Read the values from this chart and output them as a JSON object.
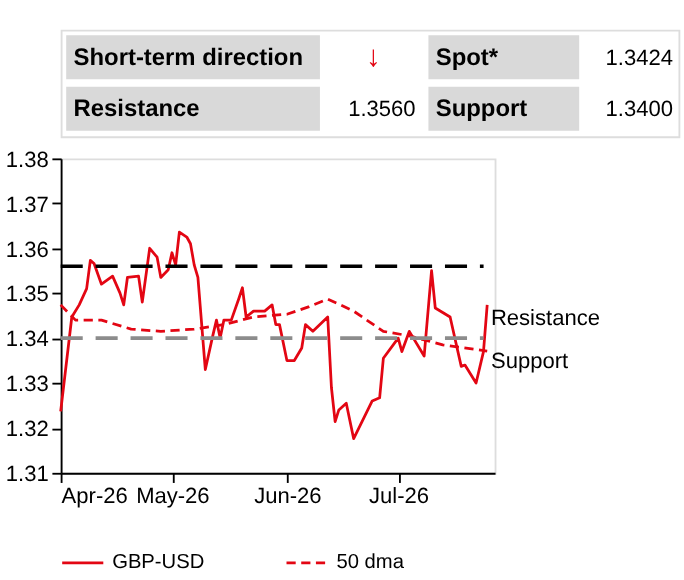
{
  "chart_data": {
    "type": "line",
    "annotations": [
      "Short-term direction",
      "↓",
      "Spot*",
      "1.3424",
      "Resistance",
      "1.3560",
      "Support",
      "1.3400"
    ],
    "series": [
      {
        "name": "GBP-USD",
        "color": "#e30613",
        "line_style": "solid",
        "x": [
          "2026-04-01",
          "2026-04-04",
          "2026-04-06",
          "2026-04-08",
          "2026-04-09",
          "2026-04-10",
          "2026-04-12",
          "2026-04-15",
          "2026-04-17",
          "2026-04-18",
          "2026-04-19",
          "2026-04-22",
          "2026-04-23",
          "2026-04-25",
          "2026-04-27",
          "2026-04-28",
          "2026-04-30",
          "2026-05-01",
          "2026-05-02",
          "2026-05-03",
          "2026-05-05",
          "2026-05-06",
          "2026-05-07",
          "2026-05-08",
          "2026-05-10",
          "2026-05-12",
          "2026-05-13",
          "2026-05-14",
          "2026-05-15",
          "2026-05-17",
          "2026-05-19",
          "2026-05-20",
          "2026-05-21",
          "2026-05-23",
          "2026-05-26",
          "2026-05-28",
          "2026-05-29",
          "2026-05-30",
          "2026-06-01",
          "2026-06-03",
          "2026-06-05",
          "2026-06-06",
          "2026-06-08",
          "2026-06-12",
          "2026-06-13",
          "2026-06-14",
          "2026-06-15",
          "2026-06-17",
          "2026-06-19",
          "2026-06-24",
          "2026-06-26",
          "2026-06-27",
          "2026-07-01",
          "2026-07-02",
          "2026-07-04",
          "2026-07-08",
          "2026-07-10",
          "2026-07-11",
          "2026-07-15",
          "2026-07-18",
          "2026-07-19",
          "2026-07-22",
          "2026-07-24",
          "2026-07-25"
        ],
        "values": [
          1.3237,
          1.3447,
          1.3474,
          1.351,
          1.3573,
          1.3566,
          1.352,
          1.3538,
          1.35,
          1.3474,
          1.3535,
          1.3538,
          1.348,
          1.36,
          1.358,
          1.3535,
          1.3552,
          1.359,
          1.3563,
          1.3636,
          1.3625,
          1.361,
          1.3563,
          1.3535,
          1.333,
          1.3405,
          1.344,
          1.34,
          1.344,
          1.344,
          1.3487,
          1.3512,
          1.3447,
          1.346,
          1.346,
          1.3474,
          1.343,
          1.343,
          1.335,
          1.335,
          1.3378,
          1.343,
          1.3415,
          1.3447,
          1.329,
          1.3214,
          1.324,
          1.3255,
          1.3176,
          1.326,
          1.3267,
          1.3355,
          1.34,
          1.337,
          1.3415,
          1.336,
          1.355,
          1.3467,
          1.3447,
          1.3337,
          1.334,
          1.33,
          1.337,
          1.3474
        ]
      },
      {
        "name": "50 dma",
        "color": "#e30613",
        "line_style": "dashed",
        "x": [
          "2026-04-01",
          "2026-04-05",
          "2026-04-12",
          "2026-04-20",
          "2026-04-28",
          "2026-05-07",
          "2026-05-15",
          "2026-05-23",
          "2026-06-01",
          "2026-06-07",
          "2026-06-12",
          "2026-06-19",
          "2026-06-27",
          "2026-07-04",
          "2026-07-13",
          "2026-07-25"
        ],
        "values": [
          1.3474,
          1.344,
          1.344,
          1.342,
          1.3415,
          1.342,
          1.343,
          1.3447,
          1.3453,
          1.347,
          1.3487,
          1.346,
          1.3415,
          1.3405,
          1.3385,
          1.3371
        ]
      }
    ],
    "xlim": [
      "2026-04-01",
      "2026-07-27"
    ],
    "xticks": [
      {
        "value": "2026-04-01",
        "label": "Apr-26"
      },
      {
        "value": "2026-05-01",
        "label": "May-26"
      },
      {
        "value": "2026-06-01",
        "label": "Jun-26"
      },
      {
        "value": "2026-07-01",
        "label": "Jul-26"
      }
    ],
    "ylim": [
      1.31,
      1.38
    ],
    "yticks": [
      1.31,
      1.32,
      1.33,
      1.34,
      1.35,
      1.36,
      1.37,
      1.38
    ],
    "ref_lines": [
      {
        "axis": "y",
        "value": 1.356,
        "label": "Resistance",
        "color": "#000000",
        "line_style": "dashed"
      },
      {
        "axis": "y",
        "value": 1.34,
        "label": "Support",
        "color": "#8c8c8c",
        "line_style": "dashed"
      }
    ],
    "grid": false,
    "legend": "bottom",
    "marker": "none"
  }
}
